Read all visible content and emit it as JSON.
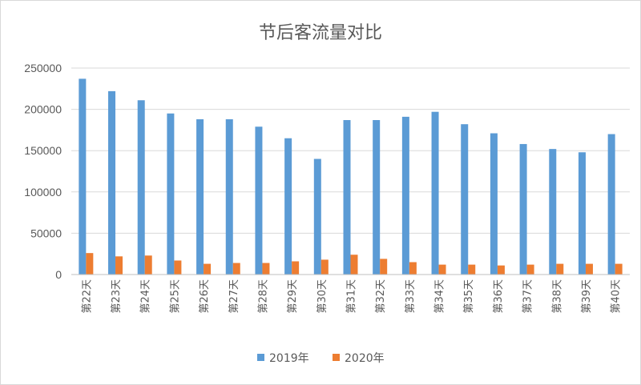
{
  "chart_data": {
    "type": "bar",
    "title": "节后客流量对比",
    "categories": [
      "第22天",
      "第23天",
      "第24天",
      "第25天",
      "第26天",
      "第27天",
      "第28天",
      "第29天",
      "第30天",
      "第31天",
      "第32天",
      "第33天",
      "第34天",
      "第35天",
      "第36天",
      "第37天",
      "第38天",
      "第39天",
      "第40天"
    ],
    "series": [
      {
        "name": "2019年",
        "color": "#5b9bd5",
        "values": [
          237000,
          222000,
          211000,
          195000,
          188000,
          188000,
          179000,
          165000,
          140000,
          187000,
          187000,
          191000,
          197000,
          182000,
          171000,
          158000,
          152000,
          148000,
          170000
        ]
      },
      {
        "name": "2020年",
        "color": "#ed7d31",
        "values": [
          26000,
          22000,
          23000,
          17000,
          13000,
          14000,
          14000,
          16000,
          18000,
          24000,
          19000,
          15000,
          12000,
          12000,
          11000,
          12000,
          13000,
          13000,
          13000
        ]
      }
    ],
    "yticks": [
      "0",
      "50000",
      "100000",
      "150000",
      "200000",
      "250000"
    ],
    "ylim": [
      0,
      250000
    ],
    "grid": true,
    "legend_position": "bottom"
  }
}
